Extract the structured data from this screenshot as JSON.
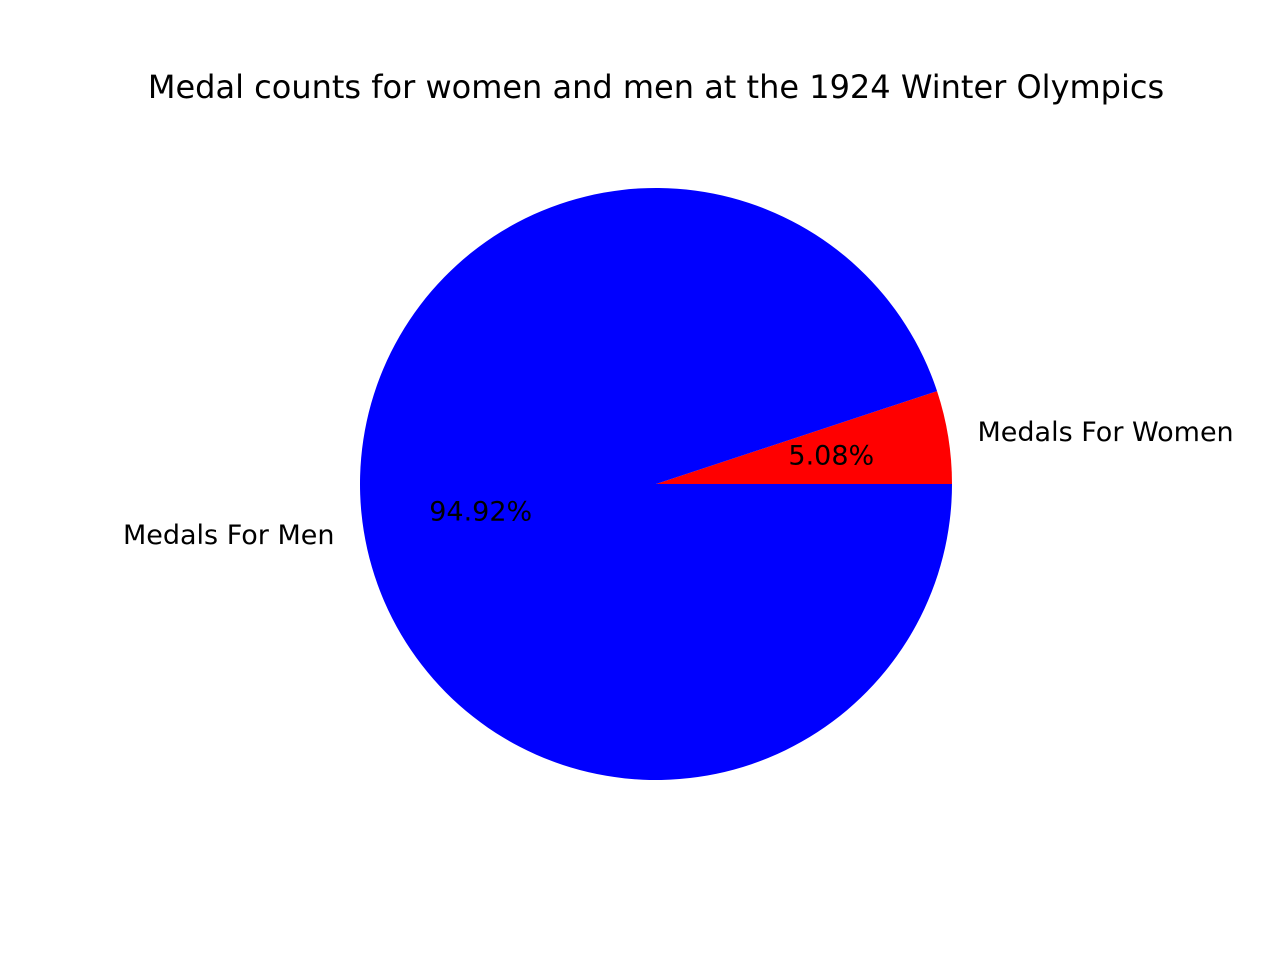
{
  "chart_data": {
    "type": "pie",
    "title": "Medal counts for women and men at the 1924 Winter Olympics",
    "slices": [
      {
        "label": "Medals For Women",
        "value": 5.08,
        "pct_label": "5.08%",
        "color": "#ff0000"
      },
      {
        "label": "Medals For Men",
        "value": 94.92,
        "pct_label": "94.92%",
        "color": "#0000ff"
      }
    ],
    "start_angle": "0 degrees (3 o'clock)",
    "direction": "counterclockwise",
    "legend": "none"
  }
}
